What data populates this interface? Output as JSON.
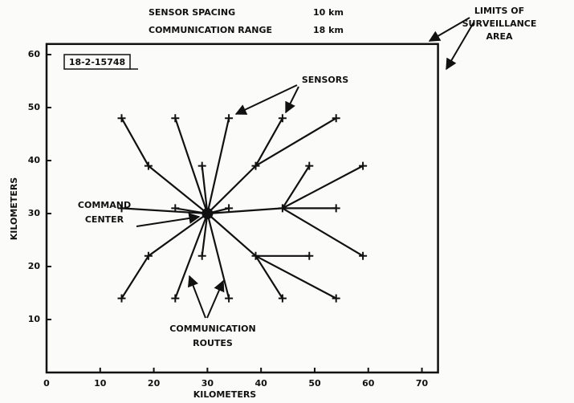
{
  "chart_data": {
    "type": "network",
    "header": [
      {
        "label": "SENSOR SPACING",
        "value": "10 km"
      },
      {
        "label": "COMMUNICATION RANGE",
        "value": "18 km"
      }
    ],
    "figure_id": "18-2-15748",
    "annotations": {
      "limits": [
        "LIMITS OF",
        "SURVEILLANCE",
        "AREA"
      ],
      "sensors": "SENSORS",
      "command_center": [
        "COMMAND",
        "CENTER"
      ],
      "routes": [
        "COMMUNICATION",
        "ROUTES"
      ]
    },
    "x_label": "KILOMETERS",
    "y_label": "KILOMETERS",
    "xlim": [
      0,
      73
    ],
    "ylim": [
      0,
      62
    ],
    "xticks": [
      0,
      10,
      20,
      30,
      40,
      50,
      60,
      70
    ],
    "yticks": [
      10,
      20,
      30,
      40,
      50,
      60
    ],
    "center": {
      "x": 30,
      "y": 30
    },
    "sensors": {
      "x": [
        14,
        24,
        34,
        44,
        54,
        19,
        29,
        39,
        49,
        59,
        14,
        24,
        34,
        44,
        54,
        19,
        29,
        39,
        49,
        59,
        14,
        24,
        34,
        44,
        54
      ],
      "y": [
        48,
        48,
        48,
        48,
        48,
        39,
        39,
        39,
        39,
        39,
        31,
        31,
        31,
        31,
        31,
        22,
        22,
        22,
        22,
        22,
        14,
        14,
        14,
        14,
        14
      ]
    },
    "routes": [
      [
        [
          14,
          48
        ],
        [
          19,
          39
        ]
      ],
      [
        [
          19,
          39
        ],
        [
          30,
          30
        ]
      ],
      [
        [
          24,
          48
        ],
        [
          30,
          30
        ]
      ],
      [
        [
          29,
          39
        ],
        [
          30,
          30
        ]
      ],
      [
        [
          34,
          48
        ],
        [
          30,
          30
        ]
      ],
      [
        [
          44,
          48
        ],
        [
          39,
          39
        ]
      ],
      [
        [
          54,
          48
        ],
        [
          39,
          39
        ]
      ],
      [
        [
          39,
          39
        ],
        [
          30,
          30
        ]
      ],
      [
        [
          14,
          31
        ],
        [
          30,
          30
        ]
      ],
      [
        [
          24,
          31
        ],
        [
          30,
          30
        ]
      ],
      [
        [
          34,
          31
        ],
        [
          30,
          30
        ]
      ],
      [
        [
          44,
          31
        ],
        [
          30,
          30
        ]
      ],
      [
        [
          49,
          39
        ],
        [
          44,
          31
        ]
      ],
      [
        [
          59,
          39
        ],
        [
          44,
          31
        ]
      ],
      [
        [
          54,
          31
        ],
        [
          44,
          31
        ]
      ],
      [
        [
          59,
          22
        ],
        [
          44,
          31
        ]
      ],
      [
        [
          39,
          22
        ],
        [
          30,
          30
        ]
      ],
      [
        [
          49,
          22
        ],
        [
          39,
          22
        ]
      ],
      [
        [
          54,
          14
        ],
        [
          39,
          22
        ]
      ],
      [
        [
          44,
          14
        ],
        [
          39,
          22
        ]
      ],
      [
        [
          19,
          22
        ],
        [
          30,
          30
        ]
      ],
      [
        [
          14,
          14
        ],
        [
          19,
          22
        ]
      ],
      [
        [
          24,
          14
        ],
        [
          30,
          30
        ]
      ],
      [
        [
          29,
          22
        ],
        [
          30,
          30
        ]
      ],
      [
        [
          34,
          14
        ],
        [
          30,
          30
        ]
      ]
    ]
  }
}
